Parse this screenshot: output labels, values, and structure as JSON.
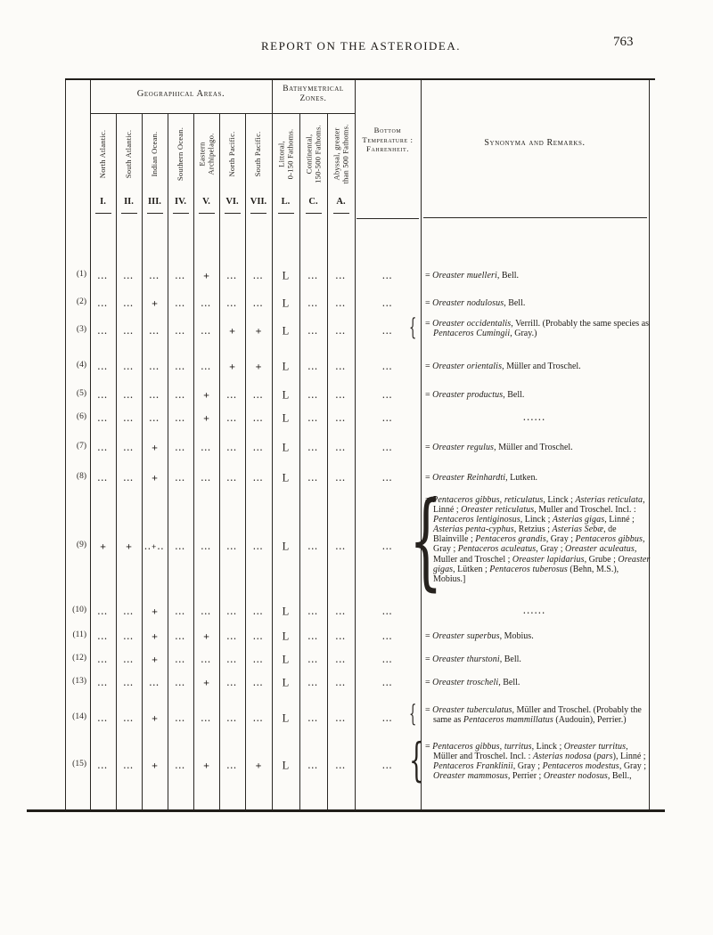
{
  "page": {
    "header_title": "REPORT ON THE ASTEROIDEA.",
    "page_number": "763"
  },
  "table": {
    "groups": {
      "geographical": "Geographical Areas.",
      "bathymetrical": "Bathymetrical\nZones."
    },
    "temperature_header": "Bottom\nTemperature :\nFahrenheit.",
    "remarks_header": "Synonyma and Remarks.",
    "columns": [
      {
        "numeral": "I.",
        "label": "North Atlantic."
      },
      {
        "numeral": "II.",
        "label": "South Atlantic."
      },
      {
        "numeral": "III.",
        "label": "Indian Ocean."
      },
      {
        "numeral": "IV.",
        "label": "Southern Ocean."
      },
      {
        "numeral": "V.",
        "label": "Eastern\nArchipelago."
      },
      {
        "numeral": "VI.",
        "label": "North Pacific."
      },
      {
        "numeral": "VII.",
        "label": "South Pacific."
      },
      {
        "numeral": "L.",
        "label": "Littoral,\n0-150 Fathoms."
      },
      {
        "numeral": "C.",
        "label": "Continental,\n150-500 Fathoms."
      },
      {
        "numeral": "A.",
        "label": "Abyssal, greater\nthan 500 Fathoms."
      }
    ],
    "rows": [
      {
        "num": "(1)",
        "marks": [
          "...",
          "...",
          "...",
          "...",
          "+",
          "...",
          "...",
          "L",
          "...",
          "...",
          "..."
        ],
        "remark": {
          "brace": false,
          "html": "= <i>Oreaster muelleri</i>, Bell."
        }
      },
      {
        "num": "(2)",
        "marks": [
          "...",
          "...",
          "+",
          "...",
          "...",
          "...",
          "...",
          "L",
          "...",
          "...",
          "..."
        ],
        "remark": {
          "brace": false,
          "html": "= <i>Oreaster nodulosus</i>, Bell."
        }
      },
      {
        "num": "(3)",
        "marks": [
          "...",
          "...",
          "...",
          "...",
          "...",
          "+",
          "+",
          "L",
          "...",
          "...",
          "..."
        ],
        "remark": {
          "brace": true,
          "html": "= <i>Oreaster occidentalis</i>, Verrill. (Probably the same species as <i>Pentaceros Cumingii</i>, Gray.)"
        }
      },
      {
        "num": "(4)",
        "marks": [
          "...",
          "...",
          "...",
          "...",
          "...",
          "+",
          "+",
          "L",
          "...",
          "...",
          "..."
        ],
        "remark": {
          "brace": false,
          "html": "= <i>Oreaster orientalis</i>, Müller and Troschel."
        }
      },
      {
        "num": "(5)",
        "marks": [
          "...",
          "...",
          "...",
          "...",
          "+",
          "...",
          "...",
          "L",
          "...",
          "...",
          "..."
        ],
        "remark": {
          "brace": false,
          "html": "= <i>Oreaster productus</i>, Bell."
        }
      },
      {
        "num": "(6)",
        "marks": [
          "...",
          "...",
          "...",
          "...",
          "+",
          "...",
          "...",
          "L",
          "...",
          "...",
          "..."
        ],
        "remark": {
          "brace": false,
          "html": "......"
        }
      },
      {
        "num": "(7)",
        "marks": [
          "...",
          "...",
          "+",
          "...",
          "...",
          "...",
          "...",
          "L",
          "...",
          "...",
          "..."
        ],
        "remark": {
          "brace": false,
          "html": "= <i>Oreaster regulus</i>, Müller and Troschel."
        }
      },
      {
        "num": "(8)",
        "marks": [
          "...",
          "...",
          "+",
          "...",
          "...",
          "...",
          "...",
          "L",
          "...",
          "...",
          "..."
        ],
        "remark": {
          "brace": false,
          "html": "= <i>Oreaster Reinhardti</i>, Lutken."
        }
      },
      {
        "num": "(9)",
        "marks": [
          "+",
          "+",
          "..+..",
          "...",
          "...",
          "...",
          "...",
          "L",
          "...",
          "...",
          "..."
        ],
        "remark": {
          "brace": true,
          "html": "= <i>Pentaceros gibbus, reticulatus</i>, Linck ; <i>Asterias reticulata</i>, Linné ; <i>Oreaster reticulatus</i>, Muller and Troschel.  Incl. : <i>Pentaceros lentiginosus</i>, Linck ; <i>Asterias gigas</i>, Linné ; <i>Asterias penta-cyphus</i>, Retzius ; <i>Asterias Sebæ</i>, de Blainville ; <i>Pentaceros grandis</i>, Gray ; <i>Pentaceros gibbus</i>, Gray ; <i>Pentaceros aculeatus</i>, Gray ; <i>Oreaster aculeatus</i>, Muller and Troschel ; <i>Oreaster lapidarius</i>, Grube ; <i>Oreaster gigas</i>, Lütken ; <i>Pentaceros tuberosus</i> (Behn, M.S.), Mobius.]"
        }
      },
      {
        "num": "(10)",
        "marks": [
          "...",
          "...",
          "+",
          "...",
          "...",
          "...",
          "...",
          "L",
          "...",
          "...",
          "..."
        ],
        "remark": {
          "brace": false,
          "html": "......"
        }
      },
      {
        "num": "(11)",
        "marks": [
          "...",
          "...",
          "+",
          "...",
          "+",
          "...",
          "...",
          "L",
          "...",
          "...",
          "..."
        ],
        "remark": {
          "brace": false,
          "html": "= <i>Oreaster superbus</i>, Mobius."
        }
      },
      {
        "num": "(12)",
        "marks": [
          "...",
          "...",
          "+",
          "...",
          "...",
          "...",
          "...",
          "L",
          "...",
          "...",
          "..."
        ],
        "remark": {
          "brace": false,
          "html": "= <i>Oreaster thurstoni</i>, Bell."
        }
      },
      {
        "num": "(13)",
        "marks": [
          "...",
          "...",
          "...",
          "...",
          "+",
          "...",
          "...",
          "L",
          "...",
          "...",
          "..."
        ],
        "remark": {
          "brace": false,
          "html": "= <i>Oreaster troscheli</i>, Bell."
        }
      },
      {
        "num": "(14)",
        "marks": [
          "...",
          "...",
          "+",
          "...",
          "...",
          "...",
          "...",
          "L",
          "...",
          "...",
          "..."
        ],
        "remark": {
          "brace": true,
          "html": "= <i>Oreaster tuberculatus</i>, Müller and Troschel. (Probably the same as <i>Pentaceros mammillatus</i> (Audouin), Perrier.)"
        }
      },
      {
        "num": "(15)",
        "marks": [
          "...",
          "...",
          "+",
          "...",
          "+",
          "...",
          "+",
          "L",
          "...",
          "...",
          "..."
        ],
        "remark": {
          "brace": true,
          "html": "= <i>Pentaceros gibbus, turritus</i>, Linck ; <i>Oreaster turritus</i>, Müller and Troschel.  Incl. : <i>Asterias nodosa</i> (<i>pars</i>), Linné ; <i>Pentaceros Franklinii</i>, Gray ; <i>Pentaceros modestus</i>, Gray ; <i>Oreaster mammosus</i>, Perrier ; <i>Oreaster nodosus</i>, Bell.,"
        }
      }
    ]
  }
}
